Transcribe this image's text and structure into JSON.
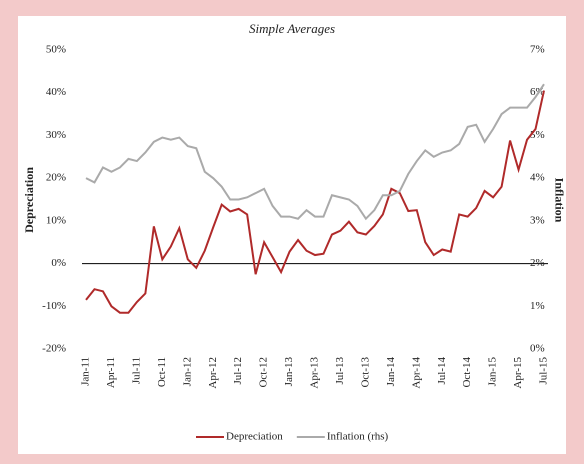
{
  "chart_data": {
    "type": "line",
    "subtitle": "Simple Averages",
    "y_label": "Depreciation",
    "y2_label": "Inflation",
    "categories": [
      "Jan-11",
      null,
      null,
      "Apr-11",
      null,
      null,
      "Jul-11",
      null,
      null,
      "Oct-11",
      null,
      null,
      "Jan-12",
      null,
      null,
      "Apr-12",
      null,
      null,
      "Jul-12",
      null,
      null,
      "Oct-12",
      null,
      null,
      "Jan-13",
      null,
      null,
      "Apr-13",
      null,
      null,
      "Jul-13",
      null,
      null,
      "Oct-13",
      null,
      null,
      "Jan-14",
      null,
      null,
      "Apr-14",
      null,
      null,
      "Jul-14",
      null,
      null,
      "Oct-14",
      null,
      null,
      "Jan-15",
      null,
      null,
      "Apr-15",
      null,
      null,
      "Jul-15"
    ],
    "series": [
      {
        "name": "Depreciation",
        "color": "#b02a2a",
        "values": [
          -8.5,
          -6,
          -6.5,
          -10,
          -11.5,
          -11.5,
          -9,
          -7,
          8.7,
          1,
          4,
          8.3,
          1,
          -1,
          3,
          8.5,
          13.8,
          12.2,
          12.8,
          11.5,
          -2.5,
          5,
          1.5,
          -2,
          2.8,
          5.5,
          3,
          2,
          2.3,
          6.8,
          7.7,
          9.8,
          7.3,
          6.8,
          8.8,
          11.5,
          17.5,
          16.5,
          12.3,
          12.5,
          5,
          2,
          3.3,
          2.8,
          11.5,
          11,
          13,
          17,
          15.5,
          18,
          28.8,
          22,
          29,
          31.5,
          40.5
        ]
      },
      {
        "name": "Inflation (rhs)",
        "color": "#aaaaaa",
        "axis": "y2",
        "values": [
          4.0,
          3.9,
          4.25,
          4.15,
          4.25,
          4.45,
          4.4,
          4.6,
          4.85,
          4.95,
          4.9,
          4.95,
          4.75,
          4.7,
          4.15,
          4.0,
          3.8,
          3.5,
          3.5,
          3.55,
          3.65,
          3.75,
          3.35,
          3.1,
          3.1,
          3.05,
          3.25,
          3.1,
          3.1,
          3.6,
          3.55,
          3.5,
          3.35,
          3.05,
          3.25,
          3.6,
          3.6,
          3.7,
          4.1,
          4.4,
          4.65,
          4.5,
          4.6,
          4.65,
          4.8,
          5.2,
          5.25,
          4.85,
          5.15,
          5.5,
          5.65,
          5.65,
          5.65,
          5.9,
          6.2
        ]
      }
    ],
    "ylim": [
      -20,
      50
    ],
    "yticks": [
      {
        "value": -20,
        "label": "-20%"
      },
      {
        "value": -10,
        "label": "-10%"
      },
      {
        "value": 0,
        "label": "0%"
      },
      {
        "value": 10,
        "label": "10%"
      },
      {
        "value": 20,
        "label": "20%"
      },
      {
        "value": 30,
        "label": "30%"
      },
      {
        "value": 40,
        "label": "40%"
      },
      {
        "value": 50,
        "label": "50%"
      }
    ],
    "y2lim": [
      0,
      7
    ],
    "y2ticks": [
      {
        "value": 0,
        "label": "0%"
      },
      {
        "value": 1,
        "label": "1%"
      },
      {
        "value": 2,
        "label": "2%"
      },
      {
        "value": 3,
        "label": "3%"
      },
      {
        "value": 4,
        "label": "4%"
      },
      {
        "value": 5,
        "label": "5%"
      },
      {
        "value": 6,
        "label": "6%"
      },
      {
        "value": 7,
        "label": "7%"
      }
    ],
    "legend": "bottom"
  }
}
